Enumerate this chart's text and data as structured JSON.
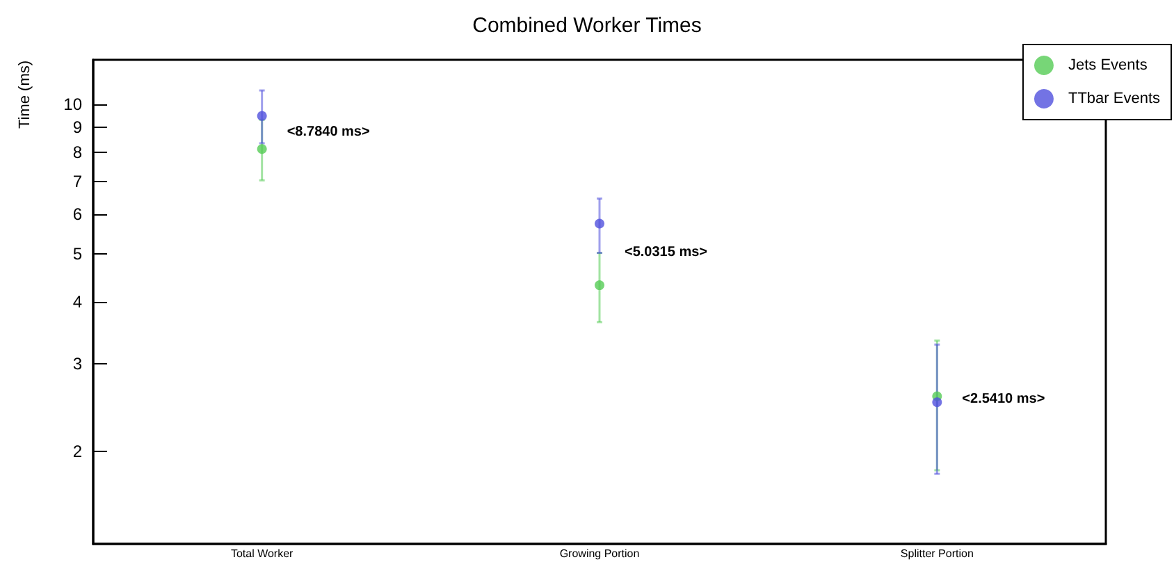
{
  "chart_data": {
    "type": "scatter",
    "title": "Combined Worker Times",
    "ylabel": "Time (ms)",
    "categories": [
      "Total Worker",
      "Growing Portion",
      "Splitter Portion"
    ],
    "series": [
      {
        "name": "Jets Events",
        "color": "#55cc55",
        "values": [
          8.13,
          4.32,
          2.58
        ],
        "errors": [
          [
            7.03,
            9.31
          ],
          [
            3.64,
            5.02
          ],
          [
            1.83,
            3.34
          ]
        ]
      },
      {
        "name": "TTbar Events",
        "color": "#5050dd",
        "values": [
          9.48,
          5.75,
          2.51
        ],
        "errors": [
          [
            8.35,
            10.67
          ],
          [
            5.02,
            6.46
          ],
          [
            1.8,
            3.28
          ]
        ]
      }
    ],
    "annotations": [
      {
        "text": "<8.7840 ms>",
        "x": "Total Worker",
        "y": 8.784
      },
      {
        "text": "<5.0315 ms>",
        "x": "Growing Portion",
        "y": 5.0315
      },
      {
        "text": "<2.5410 ms>",
        "x": "Splitter Portion",
        "y": 2.541
      }
    ],
    "log": true,
    "ylim": [
      1.3,
      12.3
    ],
    "yticks": [
      2,
      3,
      4,
      5,
      6,
      7,
      8,
      9,
      10
    ],
    "grid": false,
    "legend": "top right",
    "marker": "circle"
  }
}
